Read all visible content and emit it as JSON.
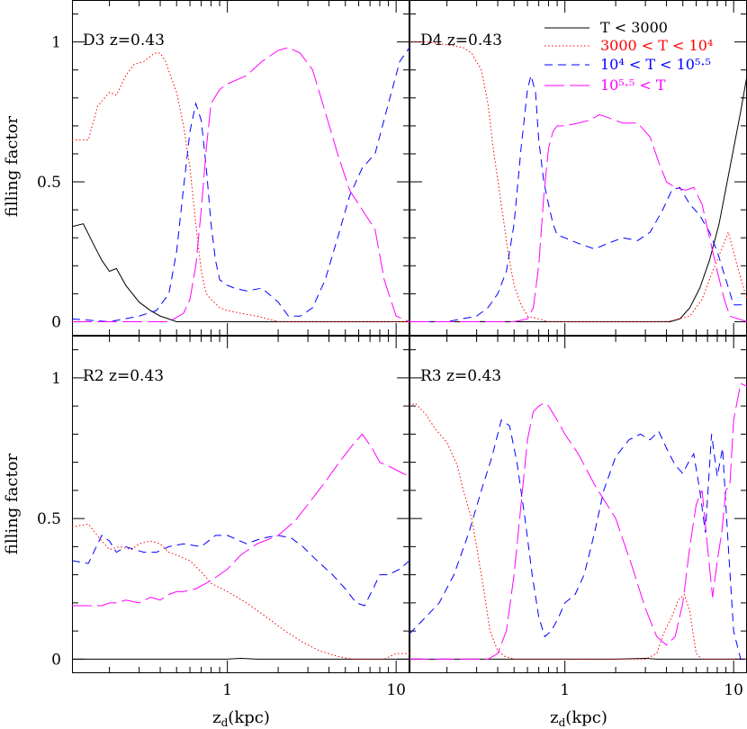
{
  "colors": {
    "cold": "#000000",
    "cool": "#ff0000",
    "warm": "#0000ff",
    "hot": "#ff00ff",
    "axis": "#000000",
    "background": "#ffffff"
  },
  "legend": {
    "placement": "top-right",
    "entries": [
      {
        "key": "cold",
        "style": "solid",
        "label": "T < 3000"
      },
      {
        "key": "cool",
        "style": "dotted",
        "label": "3000 < T < 10⁴"
      },
      {
        "key": "warm",
        "style": "short-dash",
        "label": "10⁴ < T < 10⁵·⁵"
      },
      {
        "key": "hot",
        "style": "long-dash",
        "label": "10⁵·⁵ < T"
      }
    ]
  },
  "axes": {
    "xlabel": "z",
    "xlabel_sub": "d",
    "xlabel_unit": "(kpc)",
    "ylabel": "filling factor",
    "x_ticklabels": [
      "1",
      "10"
    ],
    "y_ticklabels": [
      "0",
      "0.5",
      "1"
    ]
  },
  "chart_data": [
    {
      "type": "line",
      "title": "D3 z=0.43",
      "xscale": "log",
      "xlim": [
        0.12,
        12
      ],
      "ylim": [
        -0.05,
        1.15
      ],
      "series": [
        {
          "name": "T < 3000",
          "key": "cold",
          "x": [
            0.12,
            0.14,
            0.16,
            0.18,
            0.2,
            0.22,
            0.25,
            0.3,
            0.35,
            0.4,
            0.45,
            0.5,
            1,
            2,
            5,
            12
          ],
          "y": [
            0.34,
            0.35,
            0.28,
            0.22,
            0.18,
            0.19,
            0.13,
            0.07,
            0.04,
            0.02,
            0.01,
            0.0,
            0.0,
            0.0,
            0.0,
            0.0
          ]
        },
        {
          "name": "3000 < T < 10⁴",
          "key": "cool",
          "x": [
            0.12,
            0.15,
            0.17,
            0.2,
            0.22,
            0.25,
            0.28,
            0.32,
            0.37,
            0.4,
            0.43,
            0.46,
            0.5,
            0.55,
            0.6,
            0.65,
            0.7,
            0.75,
            0.8,
            0.9,
            1.0,
            1.2,
            1.5,
            2.0,
            3,
            5,
            12
          ],
          "y": [
            0.65,
            0.65,
            0.77,
            0.82,
            0.81,
            0.88,
            0.92,
            0.93,
            0.96,
            0.96,
            0.93,
            0.88,
            0.82,
            0.7,
            0.55,
            0.35,
            0.18,
            0.1,
            0.08,
            0.05,
            0.04,
            0.03,
            0.02,
            0.0,
            0.0,
            0.0,
            0.0
          ]
        },
        {
          "name": "10⁴ < T < 10⁵·⁵",
          "key": "warm",
          "x": [
            0.12,
            0.2,
            0.3,
            0.38,
            0.45,
            0.5,
            0.55,
            0.6,
            0.65,
            0.7,
            0.75,
            0.8,
            0.85,
            0.9,
            1.0,
            1.1,
            1.3,
            1.6,
            2.0,
            2.3,
            2.7,
            3.2,
            3.8,
            4.5,
            5.3,
            6.3,
            7.5,
            9,
            10.5,
            12
          ],
          "y": [
            0.01,
            0.0,
            0.02,
            0.04,
            0.1,
            0.25,
            0.48,
            0.68,
            0.78,
            0.72,
            0.55,
            0.35,
            0.22,
            0.15,
            0.13,
            0.12,
            0.11,
            0.12,
            0.07,
            0.02,
            0.02,
            0.05,
            0.15,
            0.3,
            0.45,
            0.55,
            0.6,
            0.78,
            0.93,
            0.98
          ]
        },
        {
          "name": "10⁵·⁵ < T",
          "key": "hot",
          "x": [
            0.12,
            0.3,
            0.45,
            0.55,
            0.6,
            0.65,
            0.7,
            0.75,
            0.8,
            0.9,
            1.0,
            1.3,
            1.6,
            2.0,
            2.3,
            2.7,
            3.2,
            3.8,
            4.5,
            5.3,
            6.3,
            7.5,
            8.5,
            10,
            12
          ],
          "y": [
            0.0,
            0.0,
            0.0,
            0.03,
            0.08,
            0.2,
            0.4,
            0.62,
            0.78,
            0.83,
            0.85,
            0.88,
            0.93,
            0.97,
            0.98,
            0.96,
            0.9,
            0.75,
            0.6,
            0.47,
            0.4,
            0.33,
            0.15,
            0.02,
            0.0
          ]
        }
      ]
    },
    {
      "type": "line",
      "title": "D4 z=0.43",
      "xscale": "log",
      "xlim": [
        0.12,
        12
      ],
      "ylim": [
        -0.05,
        1.15
      ],
      "series": [
        {
          "name": "T < 3000",
          "key": "cold",
          "x": [
            0.12,
            1,
            3,
            4.2,
            4.8,
            5.5,
            6.3,
            7.2,
            8.2,
            9.5,
            11,
            12
          ],
          "y": [
            0.0,
            0.0,
            0.0,
            0.0,
            0.01,
            0.05,
            0.12,
            0.22,
            0.35,
            0.55,
            0.75,
            0.88
          ]
        },
        {
          "name": "3000 < T < 10⁴",
          "key": "cool",
          "x": [
            0.12,
            0.15,
            0.2,
            0.25,
            0.28,
            0.32,
            0.35,
            0.38,
            0.42,
            0.46,
            0.5,
            0.55,
            0.6,
            0.7,
            0.8,
            1,
            2,
            4,
            5.5,
            6.5,
            7.5,
            8.5,
            9.3,
            10.5,
            12
          ],
          "y": [
            1.0,
            1.0,
            0.99,
            0.98,
            0.96,
            0.9,
            0.78,
            0.6,
            0.42,
            0.25,
            0.13,
            0.06,
            0.02,
            0.01,
            0.0,
            0.0,
            0.0,
            0.0,
            0.02,
            0.08,
            0.18,
            0.26,
            0.32,
            0.2,
            0.08
          ]
        },
        {
          "name": "10⁴ < T < 10⁵·⁵",
          "key": "warm",
          "x": [
            0.12,
            0.2,
            0.3,
            0.35,
            0.4,
            0.45,
            0.5,
            0.55,
            0.6,
            0.63,
            0.67,
            0.7,
            0.75,
            0.8,
            0.85,
            0.9,
            1.0,
            1.2,
            1.5,
            1.8,
            2.2,
            2.7,
            3.2,
            3.8,
            4.3,
            4.8,
            5.5,
            6.3,
            7.2,
            8,
            9,
            10,
            12
          ],
          "y": [
            0.0,
            0.0,
            0.02,
            0.05,
            0.1,
            0.18,
            0.35,
            0.62,
            0.83,
            0.88,
            0.82,
            0.65,
            0.5,
            0.42,
            0.35,
            0.31,
            0.3,
            0.28,
            0.26,
            0.28,
            0.3,
            0.29,
            0.32,
            0.4,
            0.47,
            0.48,
            0.42,
            0.38,
            0.32,
            0.25,
            0.15,
            0.06,
            0.06
          ]
        },
        {
          "name": "10⁵·⁵ < T",
          "key": "hot",
          "x": [
            0.12,
            0.5,
            0.6,
            0.65,
            0.7,
            0.75,
            0.8,
            0.85,
            0.9,
            1.0,
            1.2,
            1.4,
            1.6,
            1.8,
            2.2,
            2.7,
            3.2,
            3.6,
            4,
            4.5,
            5.2,
            5.8,
            6.5,
            7.2,
            8,
            8.8,
            9.5,
            12
          ],
          "y": [
            0.0,
            0.0,
            0.01,
            0.05,
            0.2,
            0.45,
            0.62,
            0.68,
            0.7,
            0.7,
            0.71,
            0.72,
            0.74,
            0.73,
            0.71,
            0.71,
            0.66,
            0.57,
            0.5,
            0.48,
            0.47,
            0.48,
            0.42,
            0.3,
            0.18,
            0.08,
            0.02,
            0.0
          ]
        }
      ]
    },
    {
      "type": "line",
      "title": "R2 z=0.43",
      "xscale": "log",
      "xlim": [
        0.12,
        12
      ],
      "ylim": [
        -0.05,
        1.15
      ],
      "series": [
        {
          "name": "T < 3000",
          "key": "cold",
          "x": [
            0.12,
            1,
            1.2,
            1.5,
            3,
            12
          ],
          "y": [
            0.0,
            0.0,
            0.003,
            0.0,
            0.0,
            0.0
          ]
        },
        {
          "name": "3000 < T < 10⁴",
          "key": "cool",
          "x": [
            0.12,
            0.15,
            0.18,
            0.2,
            0.23,
            0.27,
            0.3,
            0.35,
            0.4,
            0.45,
            0.5,
            0.6,
            0.7,
            0.8,
            1.0,
            1.3,
            1.7,
            2.2,
            2.8,
            3.5,
            4.5,
            5.5,
            7,
            8.5,
            10,
            12
          ],
          "y": [
            0.47,
            0.48,
            0.42,
            0.39,
            0.4,
            0.39,
            0.41,
            0.42,
            0.41,
            0.38,
            0.37,
            0.35,
            0.31,
            0.27,
            0.24,
            0.2,
            0.15,
            0.1,
            0.06,
            0.03,
            0.01,
            0.0,
            0.0,
            0.0,
            0.02,
            0.02
          ]
        },
        {
          "name": "10⁴ < T < 10⁵·⁵",
          "key": "warm",
          "x": [
            0.12,
            0.15,
            0.18,
            0.2,
            0.22,
            0.25,
            0.28,
            0.32,
            0.38,
            0.45,
            0.55,
            0.7,
            0.85,
            1.0,
            1.3,
            1.6,
            2.0,
            2.4,
            2.8,
            3.4,
            4.2,
            5,
            5.8,
            6.5,
            7.3,
            8,
            9,
            10.5,
            12
          ],
          "y": [
            0.35,
            0.34,
            0.44,
            0.42,
            0.38,
            0.4,
            0.39,
            0.38,
            0.38,
            0.4,
            0.41,
            0.4,
            0.44,
            0.44,
            0.41,
            0.43,
            0.44,
            0.43,
            0.4,
            0.35,
            0.3,
            0.25,
            0.2,
            0.19,
            0.25,
            0.3,
            0.3,
            0.32,
            0.35
          ]
        },
        {
          "name": "10⁵·⁵ < T",
          "key": "hot",
          "x": [
            0.12,
            0.18,
            0.2,
            0.22,
            0.25,
            0.3,
            0.35,
            0.4,
            0.45,
            0.5,
            0.55,
            0.65,
            0.75,
            0.85,
            1.0,
            1.2,
            1.5,
            2.0,
            2.5,
            3.0,
            3.8,
            4.6,
            5.5,
            6.3,
            7.2,
            8,
            9.5,
            11,
            12
          ],
          "y": [
            0.19,
            0.19,
            0.2,
            0.2,
            0.21,
            0.2,
            0.22,
            0.21,
            0.23,
            0.24,
            0.24,
            0.25,
            0.27,
            0.29,
            0.32,
            0.37,
            0.41,
            0.44,
            0.49,
            0.55,
            0.63,
            0.7,
            0.76,
            0.8,
            0.75,
            0.7,
            0.68,
            0.66,
            0.65
          ]
        }
      ]
    },
    {
      "type": "line",
      "title": "R3 z=0.43",
      "xscale": "log",
      "xlim": [
        0.12,
        12
      ],
      "ylim": [
        -0.05,
        1.15
      ],
      "series": [
        {
          "name": "T < 3000",
          "key": "cold",
          "x": [
            0.12,
            1,
            2,
            3,
            3.5,
            4,
            12
          ],
          "y": [
            0.0,
            0.0,
            0.0,
            0.003,
            0.0,
            0.0,
            0.0
          ]
        },
        {
          "name": "3000 < T < 10⁴",
          "key": "cool",
          "x": [
            0.12,
            0.13,
            0.15,
            0.17,
            0.2,
            0.23,
            0.25,
            0.28,
            0.3,
            0.33,
            0.36,
            0.4,
            0.44,
            0.5,
            0.6,
            1,
            2,
            3,
            3.5,
            3.9,
            4.3,
            4.7,
            5.1,
            5.5,
            6,
            6.5,
            12
          ],
          "y": [
            0.9,
            0.91,
            0.87,
            0.82,
            0.77,
            0.69,
            0.6,
            0.5,
            0.4,
            0.25,
            0.1,
            0.03,
            0.01,
            0.0,
            0.0,
            0.0,
            0.0,
            0.0,
            0.02,
            0.1,
            0.15,
            0.21,
            0.23,
            0.17,
            0.02,
            0.0,
            0.0
          ]
        },
        {
          "name": "10⁴ < T < 10⁵·⁵",
          "key": "warm",
          "x": [
            0.12,
            0.15,
            0.18,
            0.22,
            0.27,
            0.32,
            0.37,
            0.42,
            0.47,
            0.52,
            0.58,
            0.64,
            0.7,
            0.76,
            0.83,
            0.92,
            1.0,
            1.15,
            1.3,
            1.5,
            1.7,
            2.0,
            2.4,
            2.8,
            3.2,
            3.6,
            4.0,
            4.5,
            5.0,
            5.4,
            5.8,
            6.3,
            6.8,
            7.4,
            8,
            8.6,
            9.3,
            10,
            11,
            12
          ],
          "y": [
            0.09,
            0.15,
            0.2,
            0.3,
            0.45,
            0.6,
            0.72,
            0.85,
            0.83,
            0.7,
            0.5,
            0.3,
            0.15,
            0.08,
            0.1,
            0.15,
            0.2,
            0.23,
            0.3,
            0.45,
            0.6,
            0.72,
            0.78,
            0.8,
            0.78,
            0.81,
            0.75,
            0.69,
            0.66,
            0.7,
            0.73,
            0.6,
            0.45,
            0.8,
            0.65,
            0.75,
            0.4,
            0.1,
            0.0,
            0.0
          ]
        },
        {
          "name": "10⁵·⁵ < T",
          "key": "hot",
          "x": [
            0.12,
            0.35,
            0.4,
            0.45,
            0.5,
            0.55,
            0.6,
            0.65,
            0.7,
            0.75,
            0.8,
            0.9,
            1.0,
            1.2,
            1.5,
            2.0,
            2.5,
            3.0,
            3.5,
            4.0,
            4.5,
            5.0,
            5.5,
            6.0,
            6.5,
            7.0,
            7.5,
            8.0,
            8.5,
            9.0,
            9.5,
            10,
            11,
            12
          ],
          "y": [
            0.0,
            0.0,
            0.02,
            0.1,
            0.3,
            0.55,
            0.78,
            0.88,
            0.9,
            0.91,
            0.9,
            0.85,
            0.8,
            0.73,
            0.62,
            0.5,
            0.33,
            0.18,
            0.08,
            0.05,
            0.08,
            0.2,
            0.4,
            0.55,
            0.6,
            0.4,
            0.22,
            0.35,
            0.45,
            0.6,
            0.62,
            0.85,
            0.98,
            0.97
          ]
        }
      ]
    }
  ]
}
